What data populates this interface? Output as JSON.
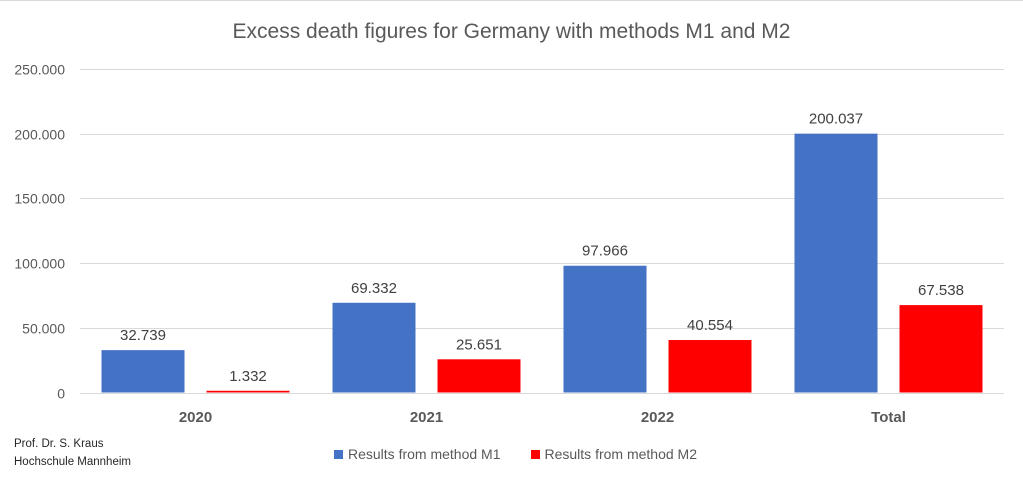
{
  "chart_data": {
    "type": "bar",
    "title": "Excess death figures for Germany with methods M1 and M2",
    "xlabel": "",
    "ylabel": "",
    "categories": [
      "2020",
      "2021",
      "2022",
      "Total"
    ],
    "series": [
      {
        "name": "Results from method M1",
        "color": "#4472C4",
        "values": [
          32739,
          69332,
          97966,
          200037
        ],
        "labels": [
          "32.739",
          "69.332",
          "97.966",
          "200.037"
        ]
      },
      {
        "name": "Results from method M2",
        "color": "#FF0000",
        "values": [
          1332,
          25651,
          40554,
          67538
        ],
        "labels": [
          "1.332",
          "25.651",
          "40.554",
          "67.538"
        ]
      }
    ],
    "ylim": [
      0,
      250000
    ],
    "yticks": [
      0,
      50000,
      100000,
      150000,
      200000,
      250000
    ],
    "ytick_labels": [
      "0",
      "50.000",
      "100.000",
      "150.000",
      "200.000",
      "250.000"
    ],
    "grid": true,
    "legend": "bottom"
  },
  "credit": {
    "line1": "Prof. Dr. S. Kraus",
    "line2": "Hochschule Mannheim"
  }
}
